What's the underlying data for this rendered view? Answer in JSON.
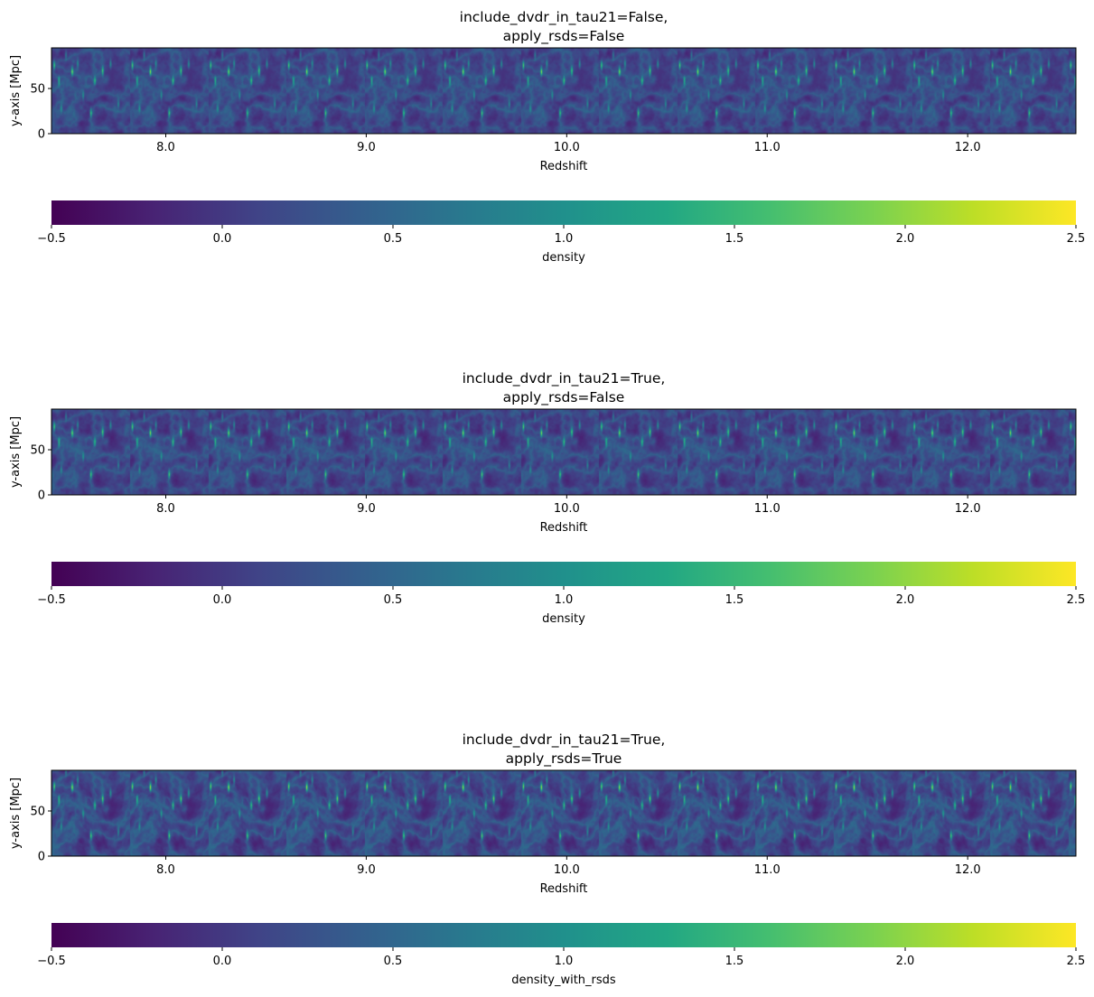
{
  "chart_data": [
    {
      "type": "heatmap",
      "title_lines": [
        "include_dvdr_in_tau21=False,",
        "apply_rsds=False"
      ],
      "xlabel": "Redshift",
      "ylabel": "y-axis [Mpc]",
      "xlim": [
        7.43,
        12.54
      ],
      "ylim": [
        0,
        95
      ],
      "xticks": [
        8.0,
        9.0,
        10.0,
        11.0,
        12.0
      ],
      "xtick_labels": [
        "8.0",
        "9.0",
        "10.0",
        "11.0",
        "12.0"
      ],
      "yticks": [
        0,
        50
      ],
      "ytick_labels": [
        "0",
        "50"
      ],
      "colormap": "viridis",
      "colorbar": {
        "label": "density",
        "range": [
          -0.5,
          2.5
        ],
        "ticks": [
          -0.5,
          0.0,
          0.5,
          1.0,
          1.5,
          2.0,
          2.5
        ],
        "tick_labels": [
          "−0.5",
          "0.0",
          "0.5",
          "1.0",
          "1.5",
          "2.0",
          "2.5"
        ]
      },
      "field_period_redshift": 0.39,
      "variant": 0
    },
    {
      "type": "heatmap",
      "title_lines": [
        "include_dvdr_in_tau21=True,",
        "apply_rsds=False"
      ],
      "xlabel": "Redshift",
      "ylabel": "y-axis [Mpc]",
      "xlim": [
        7.43,
        12.54
      ],
      "ylim": [
        0,
        95
      ],
      "xticks": [
        8.0,
        9.0,
        10.0,
        11.0,
        12.0
      ],
      "xtick_labels": [
        "8.0",
        "9.0",
        "10.0",
        "11.0",
        "12.0"
      ],
      "yticks": [
        0,
        50
      ],
      "ytick_labels": [
        "0",
        "50"
      ],
      "colormap": "viridis",
      "colorbar": {
        "label": "density",
        "range": [
          -0.5,
          2.5
        ],
        "ticks": [
          -0.5,
          0.0,
          0.5,
          1.0,
          1.5,
          2.0,
          2.5
        ],
        "tick_labels": [
          "−0.5",
          "0.0",
          "0.5",
          "1.0",
          "1.5",
          "2.0",
          "2.5"
        ]
      },
      "field_period_redshift": 0.39,
      "variant": 1
    },
    {
      "type": "heatmap",
      "title_lines": [
        "include_dvdr_in_tau21=True,",
        "apply_rsds=True"
      ],
      "xlabel": "Redshift",
      "ylabel": "y-axis [Mpc]",
      "xlim": [
        7.43,
        12.54
      ],
      "ylim": [
        0,
        95
      ],
      "xticks": [
        8.0,
        9.0,
        10.0,
        11.0,
        12.0
      ],
      "xtick_labels": [
        "8.0",
        "9.0",
        "10.0",
        "11.0",
        "12.0"
      ],
      "yticks": [
        0,
        50
      ],
      "ytick_labels": [
        "0",
        "50"
      ],
      "colormap": "viridis",
      "colorbar": {
        "label": "density_with_rsds",
        "range": [
          -0.5,
          2.5
        ],
        "ticks": [
          -0.5,
          0.0,
          0.5,
          1.0,
          1.5,
          2.0,
          2.5
        ],
        "tick_labels": [
          "−0.5",
          "0.0",
          "0.5",
          "1.0",
          "1.5",
          "2.0",
          "2.5"
        ]
      },
      "field_period_redshift": 0.39,
      "variant": 2
    }
  ]
}
